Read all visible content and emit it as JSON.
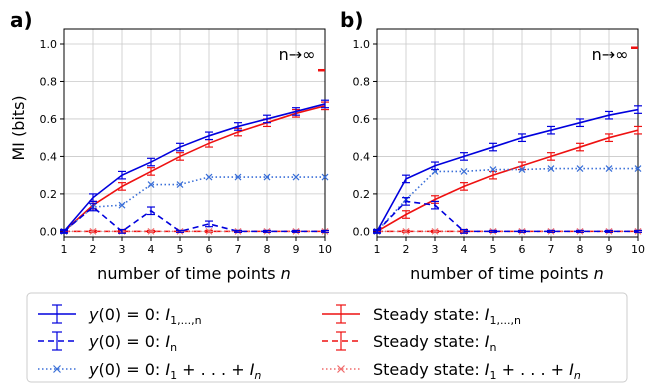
{
  "colors": {
    "blue": "#0000dd",
    "cornflower": "#3a6fd8",
    "red": "#ee1111",
    "salmon": "#f06a6a",
    "grid": "#c8c8c8"
  },
  "legend": [
    {
      "key": "blue_solid",
      "pre": "y(0) = 0: ",
      "main": "I",
      "sub": "1,...,n",
      "post": ""
    },
    {
      "key": "red_solid",
      "pre": "Steady state: ",
      "main": "I",
      "sub": "1,...,n",
      "post": ""
    },
    {
      "key": "blue_dashed",
      "pre": "y(0) = 0: ",
      "main": "I",
      "sub": "n",
      "post": ""
    },
    {
      "key": "red_dashed",
      "pre": "Steady state: ",
      "main": "I",
      "sub": "n",
      "post": ""
    },
    {
      "key": "blue_dotted",
      "pre": "y(0) = 0: ",
      "main": "I",
      "sub": "1",
      "post": " + . . . + I",
      "sub2": "n"
    },
    {
      "key": "red_dotted",
      "pre": "Steady state: ",
      "main": "I",
      "sub": "1",
      "post": " + . . . + I",
      "sub2": "n"
    }
  ],
  "chart_data": [
    {
      "type": "line",
      "panel_label": "a)",
      "xlabel": "number of time points n",
      "ylabel": "MI (bits)",
      "annotation": "n→∞",
      "xlim": [
        1,
        10
      ],
      "ylim": [
        -0.03,
        1.08
      ],
      "xticks": [
        1,
        2,
        3,
        4,
        5,
        6,
        7,
        8,
        9,
        10
      ],
      "yticks": [
        "0.0",
        "0.2",
        "0.4",
        "0.6",
        "0.8",
        "1.0"
      ],
      "grid": true,
      "x": [
        1,
        2,
        3,
        4,
        5,
        6,
        7,
        8,
        9,
        10
      ],
      "series": [
        {
          "name": "y(0) = 0: I1,...,n",
          "style": "blue_solid",
          "values": [
            0.0,
            0.18,
            0.3,
            0.37,
            0.45,
            0.51,
            0.56,
            0.6,
            0.64,
            0.68
          ],
          "err": [
            0.01,
            0.02,
            0.02,
            0.02,
            0.02,
            0.02,
            0.02,
            0.02,
            0.02,
            0.02
          ]
        },
        {
          "name": "y(0) = 0: In",
          "style": "blue_dashed",
          "values": [
            0.0,
            0.13,
            0.0,
            0.11,
            0.0,
            0.04,
            0.0,
            0.0,
            0.0,
            0.0
          ],
          "err": [
            0.005,
            0.02,
            0.01,
            0.02,
            0.005,
            0.015,
            0.005,
            0.005,
            0.005,
            0.005
          ]
        },
        {
          "name": "y(0) = 0: I1+...+In",
          "style": "blue_dotted",
          "values": [
            0.0,
            0.13,
            0.14,
            0.25,
            0.25,
            0.29,
            0.29,
            0.29,
            0.29,
            0.29
          ]
        },
        {
          "name": "Steady state: I1,...,n",
          "style": "red_solid",
          "values": [
            0.0,
            0.14,
            0.24,
            0.32,
            0.4,
            0.47,
            0.53,
            0.58,
            0.63,
            0.67
          ],
          "err": [
            0.005,
            0.02,
            0.02,
            0.02,
            0.02,
            0.02,
            0.02,
            0.02,
            0.02,
            0.02
          ]
        },
        {
          "name": "Steady state: In",
          "style": "red_dashed",
          "values": [
            0.0,
            0.0,
            0.0,
            0.0,
            0.0,
            0.0,
            0.0,
            0.0,
            0.0,
            0.0
          ],
          "err": [
            0.005,
            0.005,
            0.005,
            0.005,
            0.005,
            0.005,
            0.005,
            0.005,
            0.005,
            0.005
          ]
        },
        {
          "name": "Steady state: I1+...+In",
          "style": "red_dotted",
          "values": [
            0.0,
            0.0,
            0.0,
            0.0,
            0.0,
            0.0,
            0.0,
            0.0,
            0.0,
            0.0
          ]
        }
      ],
      "limit_value": 0.86
    },
    {
      "type": "line",
      "panel_label": "b)",
      "xlabel": "number of time points n",
      "ylabel": "",
      "annotation": "n→∞",
      "xlim": [
        1,
        10
      ],
      "ylim": [
        -0.03,
        1.08
      ],
      "xticks": [
        1,
        2,
        3,
        4,
        5,
        6,
        7,
        8,
        9,
        10
      ],
      "yticks": [
        "0.0",
        "0.2",
        "0.4",
        "0.6",
        "0.8",
        "1.0"
      ],
      "grid": true,
      "x": [
        1,
        2,
        3,
        4,
        5,
        6,
        7,
        8,
        9,
        10
      ],
      "series": [
        {
          "name": "y(0) = 0: I1,...,n",
          "style": "blue_solid",
          "values": [
            0.0,
            0.28,
            0.35,
            0.4,
            0.45,
            0.5,
            0.54,
            0.58,
            0.62,
            0.65
          ],
          "err": [
            0.01,
            0.02,
            0.02,
            0.02,
            0.02,
            0.02,
            0.02,
            0.02,
            0.02,
            0.02
          ]
        },
        {
          "name": "y(0) = 0: In",
          "style": "blue_dashed",
          "values": [
            0.0,
            0.16,
            0.14,
            0.0,
            0.0,
            0.0,
            0.0,
            0.0,
            0.0,
            0.0
          ],
          "err": [
            0.005,
            0.02,
            0.02,
            0.01,
            0.005,
            0.005,
            0.005,
            0.005,
            0.005,
            0.005
          ]
        },
        {
          "name": "y(0) = 0: I1+...+In",
          "style": "blue_dotted",
          "values": [
            0.0,
            0.17,
            0.32,
            0.32,
            0.33,
            0.33,
            0.335,
            0.335,
            0.335,
            0.335
          ]
        },
        {
          "name": "Steady state: I1,...,n",
          "style": "red_solid",
          "values": [
            0.0,
            0.09,
            0.17,
            0.24,
            0.3,
            0.35,
            0.4,
            0.45,
            0.5,
            0.54
          ],
          "err": [
            0.005,
            0.02,
            0.02,
            0.02,
            0.02,
            0.02,
            0.02,
            0.02,
            0.02,
            0.02
          ]
        },
        {
          "name": "Steady state: In",
          "style": "red_dashed",
          "values": [
            0.0,
            0.0,
            0.0,
            0.0,
            0.0,
            0.0,
            0.0,
            0.0,
            0.0,
            0.0
          ],
          "err": [
            0.005,
            0.005,
            0.005,
            0.005,
            0.005,
            0.005,
            0.005,
            0.005,
            0.005,
            0.005
          ]
        },
        {
          "name": "Steady state: I1+...+In",
          "style": "red_dotted",
          "values": [
            0.0,
            0.0,
            0.0,
            0.0,
            0.0,
            0.0,
            0.0,
            0.0,
            0.0,
            0.0
          ]
        }
      ],
      "limit_value": 0.98
    }
  ]
}
